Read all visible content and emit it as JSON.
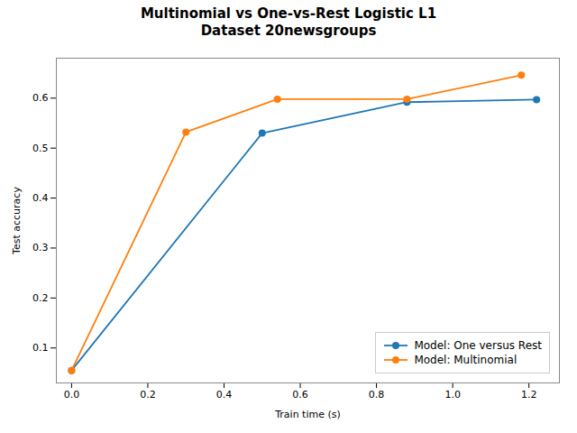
{
  "chart_data": {
    "type": "line",
    "title": "Multinomial vs One-vs-Rest Logistic L1\nDataset 20newsgroups",
    "xlabel": "Train time (s)",
    "ylabel": "Test accuracy",
    "series": [
      {
        "name": "Model: One versus Rest",
        "color": "#1f77b4",
        "marker": "circle",
        "x": [
          0.0,
          0.5,
          0.88,
          1.22
        ],
        "values": [
          0.055,
          0.53,
          0.592,
          0.597
        ]
      },
      {
        "name": "Model: Multinomial",
        "color": "#ff7f0e",
        "marker": "circle",
        "x": [
          0.0,
          0.3,
          0.54,
          0.88,
          1.18
        ],
        "values": [
          0.055,
          0.532,
          0.598,
          0.598,
          0.646
        ]
      }
    ],
    "xlim": [
      -0.04,
      1.28
    ],
    "ylim": [
      0.03,
      0.68
    ],
    "xticks": [
      {
        "value": 0,
        "label": "0.0"
      },
      0.2,
      0.4,
      0.6,
      0.8,
      {
        "value": 1,
        "label": "1.0"
      },
      1.2
    ],
    "yticks": [
      0.1,
      0.2,
      0.3,
      0.4,
      0.5,
      0.6
    ],
    "legend": "lower right",
    "grid": false
  }
}
